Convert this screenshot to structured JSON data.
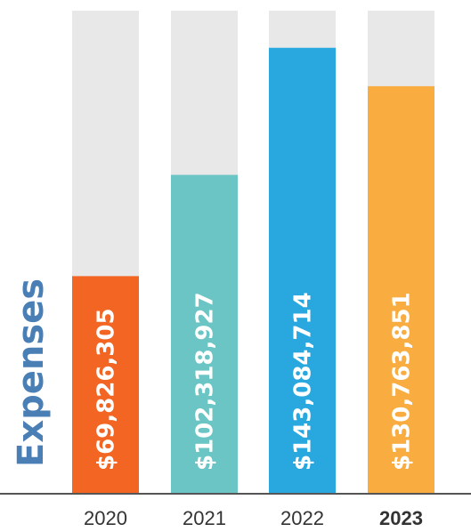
{
  "chart_data": {
    "type": "bar",
    "title": "Expenses",
    "categories": [
      "2020",
      "2021",
      "2022",
      "2023"
    ],
    "values": [
      69826305,
      102318927,
      143084714,
      130763851
    ],
    "value_labels": [
      "$69,826,305",
      "$102,318,927",
      "$143,084,714",
      "$130,763,851"
    ],
    "highlighted_category": "2023",
    "ylim": [
      0,
      155000000
    ],
    "grid": false,
    "legend": "none",
    "colors": {
      "bars": [
        "#F26522",
        "#6CC5C5",
        "#29A8E0",
        "#F9AC3F"
      ],
      "track": "#E8E8E8",
      "title": "#4A7FB5",
      "axis": "#555555",
      "labels": "#333333"
    }
  }
}
